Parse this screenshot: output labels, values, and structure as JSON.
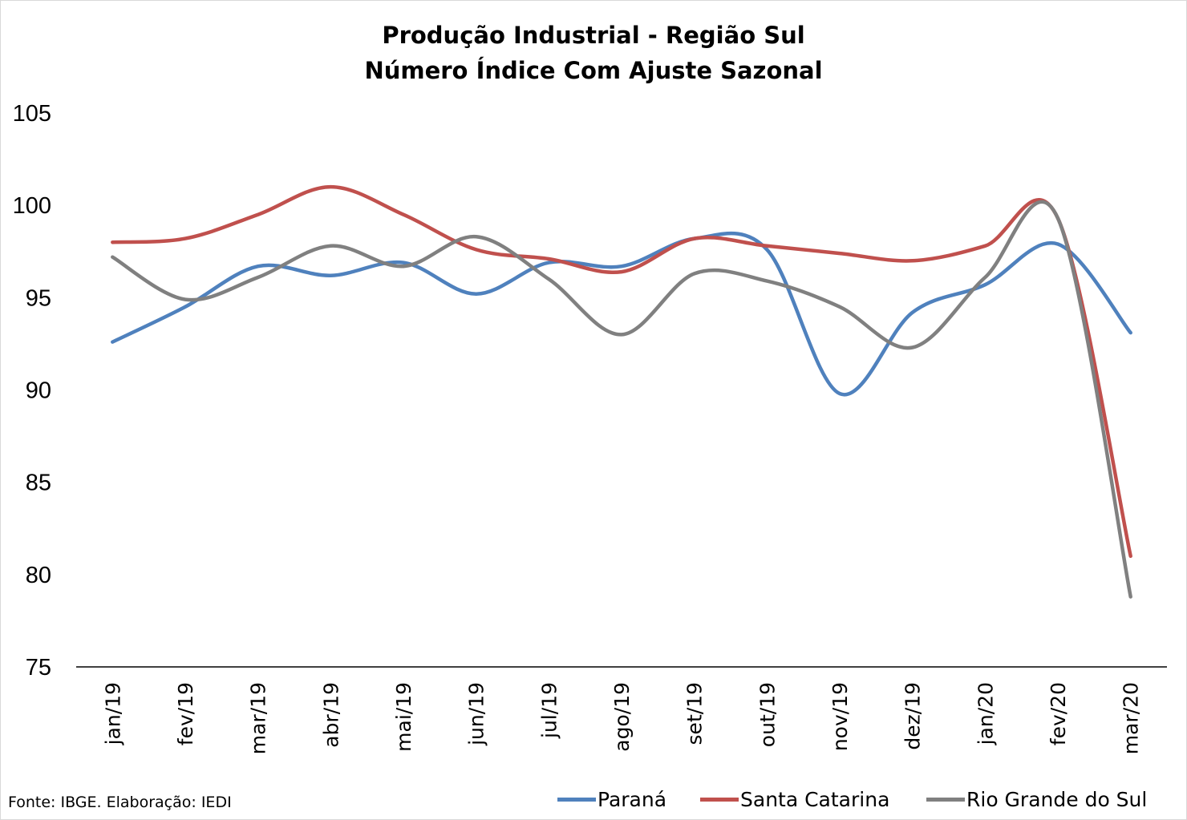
{
  "title_line1": "Produção Industrial - Região Sul",
  "title_line2": "Número Índice Com Ajuste Sazonal",
  "source": "Fonte: IBGE. Elaboração: IEDI",
  "chart_data": {
    "type": "line",
    "categories": [
      "jan/19",
      "fev/19",
      "mar/19",
      "abr/19",
      "mai/19",
      "jun/19",
      "jul/19",
      "ago/19",
      "set/19",
      "out/19",
      "nov/19",
      "dez/19",
      "jan/20",
      "fev/20",
      "mar/20"
    ],
    "ylim": [
      75,
      105
    ],
    "yticks": [
      75,
      80,
      85,
      90,
      95,
      100,
      105
    ],
    "grid": false,
    "legend_position": "bottom",
    "series": [
      {
        "name": "Paraná",
        "color": "#4f81bd",
        "values": [
          92.6,
          94.5,
          96.7,
          96.2,
          96.9,
          95.2,
          96.9,
          96.7,
          98.2,
          97.6,
          89.8,
          94.2,
          95.7,
          97.9,
          93.1
        ]
      },
      {
        "name": "Santa Catarina",
        "color": "#c0504d",
        "values": [
          98.0,
          98.2,
          99.5,
          101.0,
          99.5,
          97.6,
          97.1,
          96.4,
          98.2,
          97.8,
          97.4,
          97.0,
          97.8,
          99.3,
          81.0
        ]
      },
      {
        "name": "Rio Grande do Sul",
        "color": "#808080",
        "values": [
          97.2,
          94.9,
          96.1,
          97.8,
          96.7,
          98.3,
          96.0,
          93.0,
          96.3,
          95.9,
          94.5,
          92.3,
          96.1,
          99.3,
          78.8
        ]
      }
    ]
  }
}
